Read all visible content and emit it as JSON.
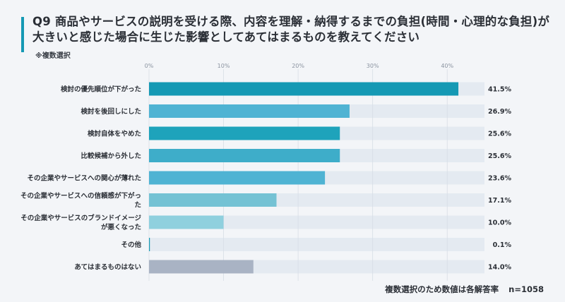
{
  "header": {
    "title": "Q9 商品やサービスの説明を受ける際、内容を理解・納得するまでの負担(時間・心理的な負担)が大きいと感じた場合に生じた影響としてあてはまるものを教えてください",
    "subtitle": "※複数選択"
  },
  "footer": {
    "note": "複数選択のため数値は各解答率",
    "sample": "n=1058"
  },
  "chart_data": {
    "type": "bar",
    "orientation": "horizontal",
    "categories": [
      "検討の優先順位が下がった",
      "検討を後回しにした",
      "検討自体をやめた",
      "比較候補から外した",
      "その企業やサービスへの関心が薄れた",
      "その企業やサービスへの信頼感が下がった",
      "その企業やサービスのブランドイメージが悪くなった",
      "その他",
      "あてはまるものはない"
    ],
    "category_lines": [
      [
        "検討の優先順位が下がった"
      ],
      [
        "検討を後回しにした"
      ],
      [
        "検討自体をやめた"
      ],
      [
        "比較候補から外した"
      ],
      [
        "その企業やサービスへの関心が薄れた"
      ],
      [
        "その企業やサービスへの信頼感が下がっ",
        "た"
      ],
      [
        "その企業やサービスのブランドイメージ",
        "が悪くなった"
      ],
      [
        "その他"
      ],
      [
        "あてはまるものはない"
      ]
    ],
    "values": [
      41.5,
      26.9,
      25.6,
      25.6,
      23.6,
      17.1,
      10.0,
      0.1,
      14.0
    ],
    "value_labels": [
      "41.5%",
      "26.9%",
      "25.6%",
      "25.6%",
      "23.6%",
      "17.1%",
      "10.0%",
      "0.1%",
      "14.0%"
    ],
    "x_ticks": [
      0,
      10,
      20,
      30,
      40
    ],
    "x_tick_labels": [
      "0%",
      "10%",
      "20%",
      "30%",
      "40%"
    ],
    "xlim": [
      0,
      45
    ],
    "grid": true,
    "colors": {
      "bars": [
        "#1599b4",
        "#4fb3d3",
        "#1ea3bb",
        "#3eadc9",
        "#4fb3d3",
        "#74c2d4",
        "#8fd0de",
        "#1599b4",
        "#a9b3c4"
      ],
      "track": "#e4eaf1",
      "grid": "#d7dde5"
    }
  }
}
